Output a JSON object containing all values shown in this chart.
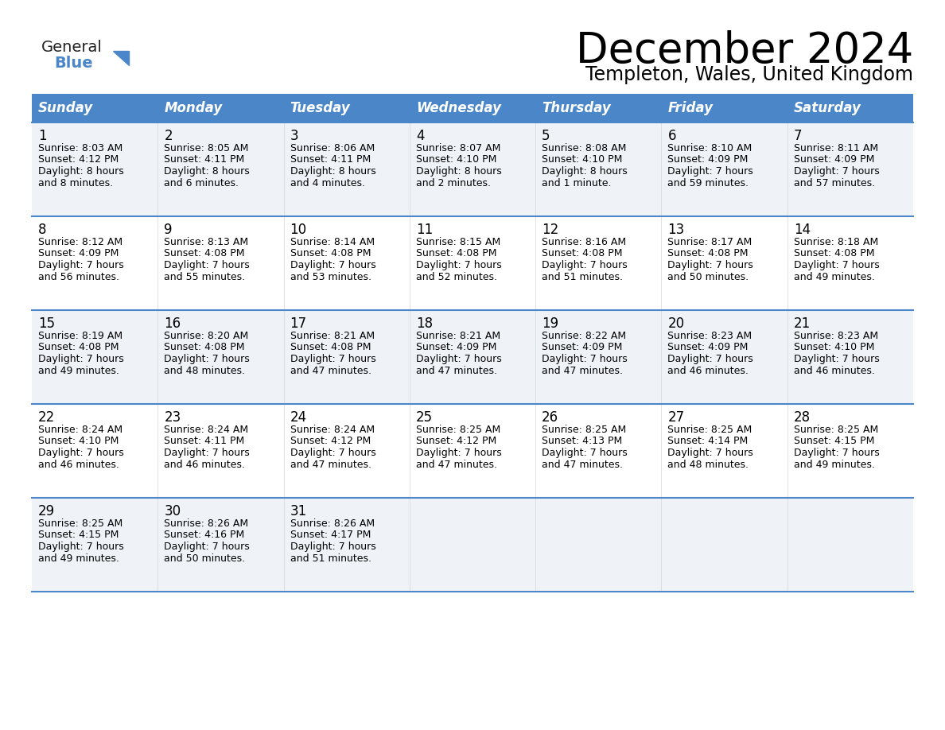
{
  "title": "December 2024",
  "subtitle": "Templeton, Wales, United Kingdom",
  "header_color": "#4a86c8",
  "header_text_color": "#FFFFFF",
  "cell_bg_even": "#eff3f8",
  "cell_bg_odd": "#FFFFFF",
  "grid_line_color": "#4a86c8",
  "text_color": "#000000",
  "title_fontsize": 38,
  "subtitle_fontsize": 17,
  "header_fontsize": 12,
  "day_num_fontsize": 12,
  "cell_fontsize": 9.0,
  "day_names": [
    "Sunday",
    "Monday",
    "Tuesday",
    "Wednesday",
    "Thursday",
    "Friday",
    "Saturday"
  ],
  "weeks": [
    [
      {
        "day": "1",
        "sunrise": "8:03 AM",
        "sunset": "4:12 PM",
        "daylight": "8 hours",
        "daylight2": "and 8 minutes."
      },
      {
        "day": "2",
        "sunrise": "8:05 AM",
        "sunset": "4:11 PM",
        "daylight": "8 hours",
        "daylight2": "and 6 minutes."
      },
      {
        "day": "3",
        "sunrise": "8:06 AM",
        "sunset": "4:11 PM",
        "daylight": "8 hours",
        "daylight2": "and 4 minutes."
      },
      {
        "day": "4",
        "sunrise": "8:07 AM",
        "sunset": "4:10 PM",
        "daylight": "8 hours",
        "daylight2": "and 2 minutes."
      },
      {
        "day": "5",
        "sunrise": "8:08 AM",
        "sunset": "4:10 PM",
        "daylight": "8 hours",
        "daylight2": "and 1 minute."
      },
      {
        "day": "6",
        "sunrise": "8:10 AM",
        "sunset": "4:09 PM",
        "daylight": "7 hours",
        "daylight2": "and 59 minutes."
      },
      {
        "day": "7",
        "sunrise": "8:11 AM",
        "sunset": "4:09 PM",
        "daylight": "7 hours",
        "daylight2": "and 57 minutes."
      }
    ],
    [
      {
        "day": "8",
        "sunrise": "8:12 AM",
        "sunset": "4:09 PM",
        "daylight": "7 hours",
        "daylight2": "and 56 minutes."
      },
      {
        "day": "9",
        "sunrise": "8:13 AM",
        "sunset": "4:08 PM",
        "daylight": "7 hours",
        "daylight2": "and 55 minutes."
      },
      {
        "day": "10",
        "sunrise": "8:14 AM",
        "sunset": "4:08 PM",
        "daylight": "7 hours",
        "daylight2": "and 53 minutes."
      },
      {
        "day": "11",
        "sunrise": "8:15 AM",
        "sunset": "4:08 PM",
        "daylight": "7 hours",
        "daylight2": "and 52 minutes."
      },
      {
        "day": "12",
        "sunrise": "8:16 AM",
        "sunset": "4:08 PM",
        "daylight": "7 hours",
        "daylight2": "and 51 minutes."
      },
      {
        "day": "13",
        "sunrise": "8:17 AM",
        "sunset": "4:08 PM",
        "daylight": "7 hours",
        "daylight2": "and 50 minutes."
      },
      {
        "day": "14",
        "sunrise": "8:18 AM",
        "sunset": "4:08 PM",
        "daylight": "7 hours",
        "daylight2": "and 49 minutes."
      }
    ],
    [
      {
        "day": "15",
        "sunrise": "8:19 AM",
        "sunset": "4:08 PM",
        "daylight": "7 hours",
        "daylight2": "and 49 minutes."
      },
      {
        "day": "16",
        "sunrise": "8:20 AM",
        "sunset": "4:08 PM",
        "daylight": "7 hours",
        "daylight2": "and 48 minutes."
      },
      {
        "day": "17",
        "sunrise": "8:21 AM",
        "sunset": "4:08 PM",
        "daylight": "7 hours",
        "daylight2": "and 47 minutes."
      },
      {
        "day": "18",
        "sunrise": "8:21 AM",
        "sunset": "4:09 PM",
        "daylight": "7 hours",
        "daylight2": "and 47 minutes."
      },
      {
        "day": "19",
        "sunrise": "8:22 AM",
        "sunset": "4:09 PM",
        "daylight": "7 hours",
        "daylight2": "and 47 minutes."
      },
      {
        "day": "20",
        "sunrise": "8:23 AM",
        "sunset": "4:09 PM",
        "daylight": "7 hours",
        "daylight2": "and 46 minutes."
      },
      {
        "day": "21",
        "sunrise": "8:23 AM",
        "sunset": "4:10 PM",
        "daylight": "7 hours",
        "daylight2": "and 46 minutes."
      }
    ],
    [
      {
        "day": "22",
        "sunrise": "8:24 AM",
        "sunset": "4:10 PM",
        "daylight": "7 hours",
        "daylight2": "and 46 minutes."
      },
      {
        "day": "23",
        "sunrise": "8:24 AM",
        "sunset": "4:11 PM",
        "daylight": "7 hours",
        "daylight2": "and 46 minutes."
      },
      {
        "day": "24",
        "sunrise": "8:24 AM",
        "sunset": "4:12 PM",
        "daylight": "7 hours",
        "daylight2": "and 47 minutes."
      },
      {
        "day": "25",
        "sunrise": "8:25 AM",
        "sunset": "4:12 PM",
        "daylight": "7 hours",
        "daylight2": "and 47 minutes."
      },
      {
        "day": "26",
        "sunrise": "8:25 AM",
        "sunset": "4:13 PM",
        "daylight": "7 hours",
        "daylight2": "and 47 minutes."
      },
      {
        "day": "27",
        "sunrise": "8:25 AM",
        "sunset": "4:14 PM",
        "daylight": "7 hours",
        "daylight2": "and 48 minutes."
      },
      {
        "day": "28",
        "sunrise": "8:25 AM",
        "sunset": "4:15 PM",
        "daylight": "7 hours",
        "daylight2": "and 49 minutes."
      }
    ],
    [
      {
        "day": "29",
        "sunrise": "8:25 AM",
        "sunset": "4:15 PM",
        "daylight": "7 hours",
        "daylight2": "and 49 minutes."
      },
      {
        "day": "30",
        "sunrise": "8:26 AM",
        "sunset": "4:16 PM",
        "daylight": "7 hours",
        "daylight2": "and 50 minutes."
      },
      {
        "day": "31",
        "sunrise": "8:26 AM",
        "sunset": "4:17 PM",
        "daylight": "7 hours",
        "daylight2": "and 51 minutes."
      },
      null,
      null,
      null,
      null
    ]
  ]
}
